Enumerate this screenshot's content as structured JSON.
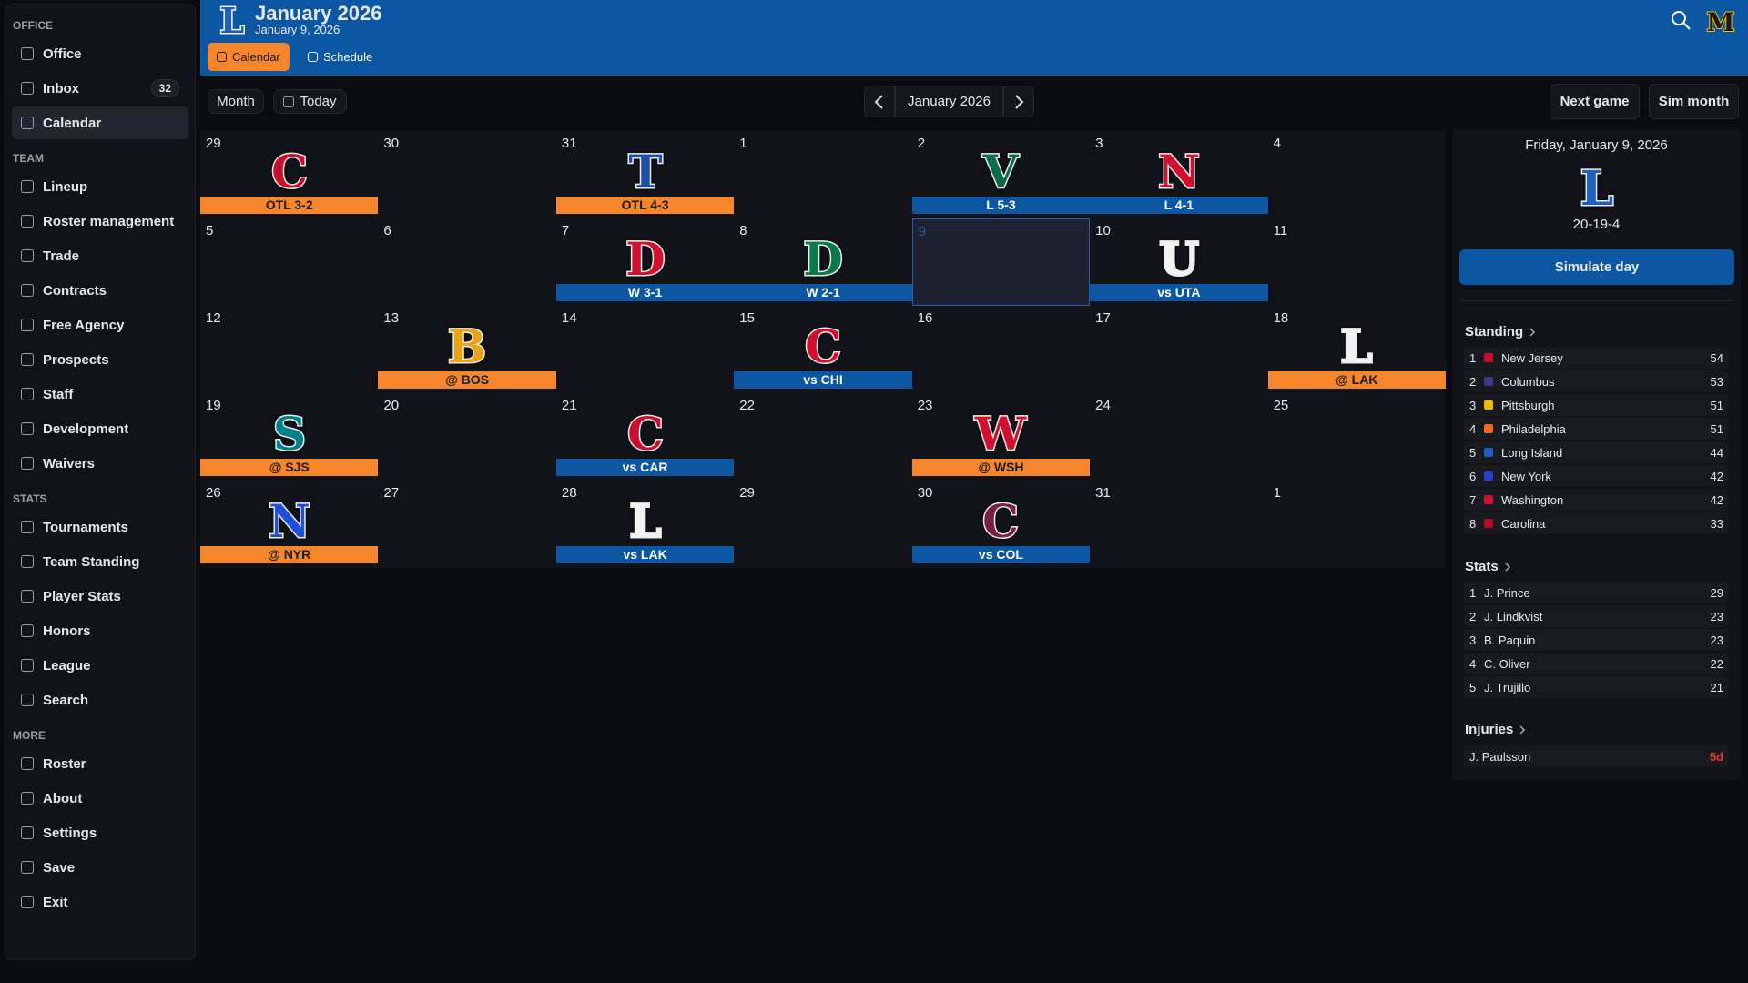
{
  "header": {
    "title": "January 2026",
    "subtitle": "January 9, 2026",
    "team_logo": "L",
    "user_logo": "M",
    "tabs": [
      {
        "label": "Calendar",
        "selected": true
      },
      {
        "label": "Schedule"
      }
    ]
  },
  "sidebar": {
    "sections": [
      {
        "title": "OFFICE",
        "items": [
          {
            "label": "Office"
          },
          {
            "label": "Inbox",
            "badge": 32
          },
          {
            "label": "Calendar",
            "selected": true
          }
        ]
      },
      {
        "title": "TEAM",
        "items": [
          {
            "label": "Lineup"
          },
          {
            "label": "Roster management"
          },
          {
            "label": "Trade"
          },
          {
            "label": "Contracts"
          },
          {
            "label": "Free Agency"
          },
          {
            "label": "Prospects"
          },
          {
            "label": "Staff"
          },
          {
            "label": "Development"
          },
          {
            "label": "Waivers"
          }
        ]
      },
      {
        "title": "STATS",
        "items": [
          {
            "label": "Tournaments"
          },
          {
            "label": "Team Standing"
          },
          {
            "label": "Player Stats"
          },
          {
            "label": "Honors"
          },
          {
            "label": "League"
          },
          {
            "label": "Search"
          }
        ]
      },
      {
        "title": "MORE",
        "items": [
          {
            "label": "Roster"
          },
          {
            "label": "About"
          },
          {
            "label": "Settings"
          },
          {
            "label": "Save"
          },
          {
            "label": "Exit"
          }
        ]
      }
    ]
  },
  "toolbar": {
    "view": "Month",
    "today": "Today",
    "period": "January 2026",
    "actions": [
      "Next game",
      "Sim month"
    ]
  },
  "calendar": {
    "weeks": [
      [
        {
          "day": 29,
          "game": {
            "logo": "C",
            "color": "#c8102e",
            "result": "OTL 3-2",
            "bar": "#f5862b"
          }
        },
        {
          "day": 30
        },
        {
          "day": 31,
          "game": {
            "logo": "T",
            "color": "#1e4fa8",
            "result": "OTL 4-3",
            "bar": "#f5862b"
          }
        },
        {
          "day": 1
        },
        {
          "day": 2,
          "game": {
            "logo": "V",
            "color": "#0b6b4a",
            "result": "L 5-3",
            "bar": "#0b57a4"
          }
        },
        {
          "day": 3,
          "game": {
            "logo": "N",
            "color": "#d0102e",
            "result": "L 4-1",
            "bar": "#0b57a4"
          }
        },
        {
          "day": 4
        }
      ],
      [
        {
          "day": 5
        },
        {
          "day": 6
        },
        {
          "day": 7,
          "game": {
            "logo": "D",
            "color": "#d0102e",
            "result": "W 3-1",
            "bar": "#0b57a4"
          }
        },
        {
          "day": 8,
          "game": {
            "logo": "D",
            "color": "#0a7a4a",
            "result": "W 2-1",
            "bar": "#0b57a4"
          }
        },
        {
          "day": 9,
          "selected": true
        },
        {
          "day": 10,
          "game": {
            "logo": "U",
            "color": "#f2f2f2",
            "result": "vs UTA",
            "bar": "#0b57a4"
          }
        },
        {
          "day": 11
        }
      ],
      [
        {
          "day": 12
        },
        {
          "day": 13,
          "game": {
            "logo": "B",
            "color": "#e8a317",
            "result": "@ BOS",
            "bar": "#f5862b"
          }
        },
        {
          "day": 14
        },
        {
          "day": 15,
          "game": {
            "logo": "C",
            "color": "#d0102e",
            "result": "vs CHI",
            "bar": "#0b57a4"
          }
        },
        {
          "day": 16
        },
        {
          "day": 17
        },
        {
          "day": 18,
          "game": {
            "logo": "L",
            "color": "#f2f2f2",
            "result": "@ LAK",
            "bar": "#f5862b"
          }
        }
      ],
      [
        {
          "day": 19,
          "game": {
            "logo": "S",
            "color": "#00808a",
            "result": "@ SJS",
            "bar": "#f5862b"
          }
        },
        {
          "day": 20
        },
        {
          "day": 21,
          "game": {
            "logo": "C",
            "color": "#c8102e",
            "result": "vs CAR",
            "bar": "#0b57a4"
          }
        },
        {
          "day": 22
        },
        {
          "day": 23,
          "game": {
            "logo": "W",
            "color": "#d0102e",
            "result": "@ WSH",
            "bar": "#f5862b"
          }
        },
        {
          "day": 24
        },
        {
          "day": 25
        }
      ],
      [
        {
          "day": 26,
          "game": {
            "logo": "N",
            "color": "#1e4fd8",
            "result": "@ NYR",
            "bar": "#f5862b"
          }
        },
        {
          "day": 27
        },
        {
          "day": 28,
          "game": {
            "logo": "L",
            "color": "#f2f2f2",
            "result": "vs LAK",
            "bar": "#0b57a4"
          }
        },
        {
          "day": 29
        },
        {
          "day": 30,
          "game": {
            "logo": "C",
            "color": "#7a2040",
            "result": "vs COL",
            "bar": "#0b57a4"
          }
        },
        {
          "day": 31
        },
        {
          "day": 1
        }
      ]
    ]
  },
  "panel": {
    "date": "Friday, January 9, 2026",
    "logo": "L",
    "record": "20-19-4",
    "action": "Simulate day",
    "standing": {
      "title": "Standing",
      "rows": [
        {
          "rank": 1,
          "team": "New Jersey",
          "points": 54,
          "color": "#c8102e"
        },
        {
          "rank": 2,
          "team": "Columbus",
          "points": 53,
          "color": "#3a3a8a"
        },
        {
          "rank": 3,
          "team": "Pittsburgh",
          "points": 51,
          "color": "#f2b800"
        },
        {
          "rank": 4,
          "team": "Philadelphia",
          "points": 51,
          "color": "#f56b1e"
        },
        {
          "rank": 5,
          "team": "Long Island",
          "points": 44,
          "color": "#1f5fbf"
        },
        {
          "rank": 6,
          "team": "New York",
          "points": 42,
          "color": "#2840c8"
        },
        {
          "rank": 7,
          "team": "Washington",
          "points": 42,
          "color": "#d0102e"
        },
        {
          "rank": 8,
          "team": "Carolina",
          "points": 33,
          "color": "#b01020"
        }
      ]
    },
    "stats": {
      "title": "Stats",
      "rows": [
        {
          "rank": 1,
          "player": "J. Prince",
          "value": 29
        },
        {
          "rank": 2,
          "player": "J. Lindkvist",
          "value": 23
        },
        {
          "rank": 3,
          "player": "B. Paquin",
          "value": 23
        },
        {
          "rank": 4,
          "player": "C. Oliver",
          "value": 22
        },
        {
          "rank": 5,
          "player": "J. Trujillo",
          "value": 21
        }
      ]
    },
    "injuries": {
      "title": "Injuries",
      "rows": [
        {
          "player": "J. Paulsson",
          "duration": "5d"
        }
      ]
    }
  }
}
